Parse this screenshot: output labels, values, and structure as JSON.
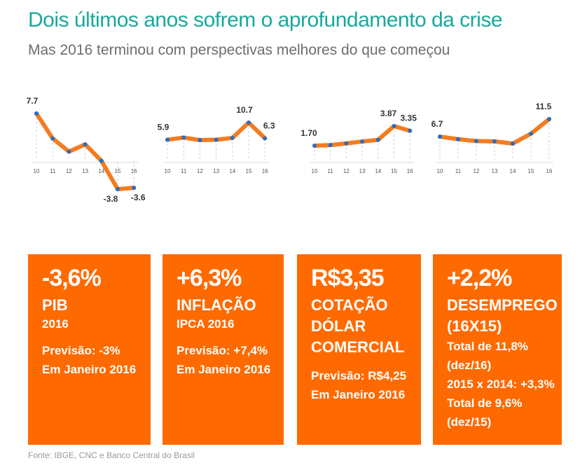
{
  "header": {
    "title": "Dois últimos anos sofrem o aprofundamento da crise",
    "subtitle": "Mas 2016 terminou com perspectivas melhores do que começou"
  },
  "colors": {
    "accent": "#1aa89c",
    "line": "#f47c20",
    "point": "#2a6ec0",
    "box": "#ff6a00"
  },
  "chart_data": [
    {
      "type": "line",
      "x": [
        "10",
        "11",
        "12",
        "13",
        "14",
        "15",
        "16"
      ],
      "values": [
        7.7,
        3.9,
        1.9,
        3.0,
        0.5,
        -3.8,
        -3.6
      ],
      "data_labels": [
        {
          "index": 0,
          "text": "7.7"
        },
        {
          "index": 5,
          "text": "-3.8"
        },
        {
          "index": 6,
          "text": "-3.6"
        }
      ],
      "title": "",
      "xlabel": "",
      "ylabel": ""
    },
    {
      "type": "line",
      "x": [
        "10",
        "11",
        "12",
        "13",
        "14",
        "15",
        "16"
      ],
      "values": [
        5.9,
        6.5,
        5.8,
        5.9,
        6.4,
        10.7,
        6.3
      ],
      "data_labels": [
        {
          "index": 0,
          "text": "5.9"
        },
        {
          "index": 5,
          "text": "10.7"
        },
        {
          "index": 6,
          "text": "6.3"
        }
      ],
      "title": "",
      "xlabel": "",
      "ylabel": ""
    },
    {
      "type": "line",
      "x": [
        "10",
        "11",
        "12",
        "13",
        "14",
        "15",
        "16"
      ],
      "values": [
        1.7,
        1.77,
        1.95,
        2.16,
        2.35,
        3.87,
        3.35
      ],
      "data_labels": [
        {
          "index": 0,
          "text": "1.70"
        },
        {
          "index": 5,
          "text": "3.87"
        },
        {
          "index": 6,
          "text": "3.35"
        }
      ],
      "title": "",
      "xlabel": "",
      "ylabel": ""
    },
    {
      "type": "line",
      "x": [
        "10",
        "11",
        "12",
        "13",
        "14",
        "15",
        "16"
      ],
      "values": [
        6.7,
        6.0,
        5.5,
        5.4,
        4.8,
        7.5,
        11.5
      ],
      "data_labels": [
        {
          "index": 0,
          "text": "6.7"
        },
        {
          "index": 6,
          "text": "11.5"
        }
      ],
      "title": "",
      "xlabel": "",
      "ylabel": ""
    }
  ],
  "boxes": [
    {
      "big": "-3,6%",
      "label": "PIB",
      "sub": "2016",
      "notes": [
        "Previsão: -3%",
        "Em Janeiro 2016"
      ]
    },
    {
      "big": "+6,3%",
      "label": "INFLAÇÃO",
      "sub": "IPCA 2016",
      "notes": [
        "Previsão: +7,4%",
        "Em Janeiro 2016"
      ]
    },
    {
      "big": "R$3,35",
      "label": "COTAÇÃO DÓLAR COMERCIAL",
      "sub": "",
      "notes": [
        "Previsão: R$4,25",
        "Em Janeiro 2016"
      ]
    },
    {
      "big": "+2,2%",
      "label": "DESEMPREGO (16X15)",
      "sub": "",
      "notes": [
        "Total de 11,8%",
        "(dez/16)",
        "2015 x 2014: +3,3%",
        "Total de 9,6%",
        "(dez/15)"
      ]
    }
  ],
  "footer": {
    "source": "Fonte: IBGE, CNC e Banco Central do Brasil"
  }
}
